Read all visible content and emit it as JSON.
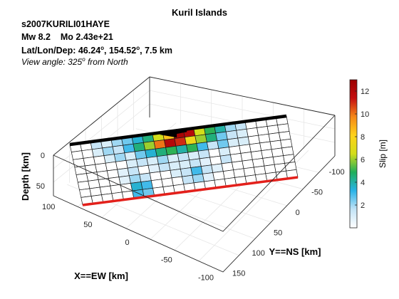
{
  "header": {
    "title": "Kuril Islands",
    "event_id": "s2007KURILI01HAYE",
    "magnitude": "Mw 8.2    Mo 2.43e+21",
    "location": {
      "label": "Lat/Lon/Dep: ",
      "lat": "46.24",
      "lat_unit": "o",
      "lon": ", 154.52",
      "lon_unit": "o",
      "depth": ", 7.5 km"
    },
    "view": {
      "prefix": "View angle: 325",
      "deg": "o",
      "suffix": " from North"
    }
  },
  "chart_data": {
    "type": "heatmap",
    "subtype": "3d-fault-slip-model",
    "axes": {
      "z": {
        "label": "Depth [km]",
        "ticks": [
          "0",
          "50"
        ],
        "range": [
          0,
          70
        ],
        "reversed": true
      },
      "x": {
        "label": "X==EW [km]",
        "ticks": [
          "100",
          "50",
          "0",
          "-50",
          "-100"
        ],
        "range": [
          -140,
          120
        ]
      },
      "y": {
        "label": "Y==NS [km]",
        "ticks": [
          "-100",
          "-50",
          "0",
          "50",
          "100",
          "150"
        ],
        "range": [
          -140,
          170
        ]
      }
    },
    "grid": true,
    "colorbar": {
      "label": "Slip [m]",
      "ticks": [
        "2",
        "4",
        "6",
        "8",
        "10",
        "12"
      ],
      "tick_values": [
        2,
        4,
        6,
        8,
        10,
        12
      ],
      "range": [
        0,
        13
      ],
      "colormap": [
        "#ffffff",
        "#c2e3f6",
        "#29b3e8",
        "#1fae5a",
        "#d3dd1a",
        "#ffd21a",
        "#f58718",
        "#c50f10",
        "#9b0000"
      ]
    },
    "fault": {
      "columns": 21,
      "rows": 8,
      "strike_from": "NE",
      "slip_m": [
        [
          0,
          0,
          1.5,
          1.0,
          2.0,
          2.5,
          3.5,
          4.5,
          6.5,
          8.5,
          12.5,
          12.0,
          6.5,
          5.0,
          4.0,
          2.0,
          1.5,
          0,
          0,
          0,
          0
        ],
        [
          0,
          0,
          1.0,
          2.0,
          1.5,
          3.0,
          4.5,
          6.0,
          10.0,
          12.0,
          11.0,
          7.5,
          6.0,
          4.5,
          2.5,
          1.5,
          1.0,
          0,
          0,
          0,
          0
        ],
        [
          0,
          0,
          0,
          1.0,
          2.0,
          1.0,
          2.5,
          3.5,
          4.5,
          5.0,
          4.0,
          5.0,
          3.0,
          1.5,
          2.5,
          1.0,
          1.0,
          0,
          0,
          0,
          0
        ],
        [
          0,
          0,
          0,
          0,
          0,
          1.0,
          1.5,
          1.0,
          2.0,
          1.0,
          1.5,
          1.0,
          1.5,
          0,
          1.0,
          0,
          0,
          0,
          0,
          0,
          0
        ],
        [
          0,
          0,
          0,
          0,
          0.8,
          1.5,
          0,
          0.8,
          1.5,
          1.0,
          1.0,
          1.5,
          0.8,
          0,
          1.5,
          0,
          0,
          0,
          0,
          0,
          0
        ],
        [
          0,
          0,
          0,
          0,
          0.8,
          2.0,
          1.5,
          0,
          0,
          1.0,
          1.5,
          3.0,
          1.5,
          0.8,
          0,
          0,
          0,
          0,
          0,
          0,
          0
        ],
        [
          0,
          0,
          0,
          0,
          0,
          3.5,
          3.0,
          0,
          0,
          0,
          1.5,
          2.0,
          0.8,
          0,
          0,
          0,
          0,
          0,
          0,
          0,
          0
        ],
        [
          0,
          0,
          0,
          0,
          0,
          3.0,
          2.5,
          0,
          0,
          0,
          0,
          0,
          0,
          0,
          0,
          0,
          0,
          0,
          0,
          0,
          0
        ]
      ]
    },
    "epicenter_marker": "black-arrow",
    "surface_trace_color": "#000000",
    "bottom_edge_color": "#e3201b"
  }
}
